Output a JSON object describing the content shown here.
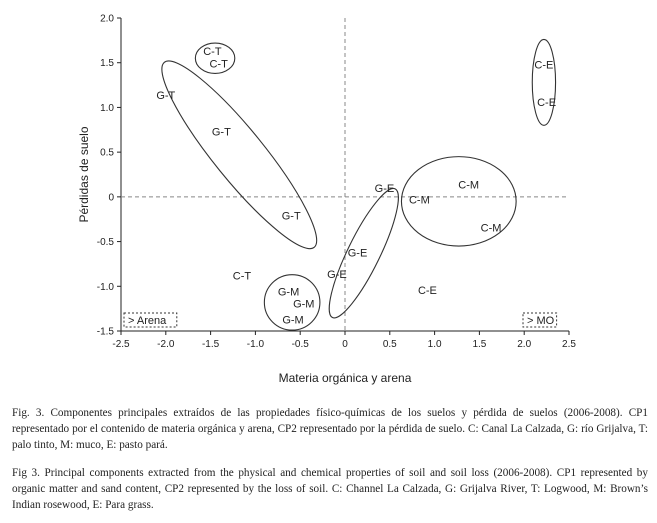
{
  "chart_data": {
    "type": "scatter",
    "xlabel": "Materia orgánica y arena",
    "ylabel": "Pérdidas de suelo",
    "xlim": [
      -2.5,
      2.5
    ],
    "ylim": [
      -1.5,
      2.0
    ],
    "xticks": [
      "-2.5",
      "-2.0",
      "-1.5",
      "-1.0",
      "-0.5",
      "0",
      "0.5",
      "1.0",
      "1.5",
      "2.0",
      "2.5"
    ],
    "yticks": [
      "2.0",
      "1.5",
      "1.0",
      "0.5",
      "0",
      "-0.5",
      "-1.0",
      "-1.5"
    ],
    "reference_lines": {
      "x": 0,
      "y": 0,
      "style": "dashed"
    },
    "corner_labels": {
      "left": "> Arena",
      "right": "> MO"
    },
    "points": [
      {
        "label": "C-T",
        "x": -1.48,
        "y": 1.63
      },
      {
        "label": "C-T",
        "x": -1.41,
        "y": 1.49
      },
      {
        "label": "G-T",
        "x": -2.0,
        "y": 1.14
      },
      {
        "label": "G-T",
        "x": -1.38,
        "y": 0.73
      },
      {
        "label": "G-T",
        "x": -0.6,
        "y": -0.21
      },
      {
        "label": "C-T",
        "x": -1.15,
        "y": -0.88
      },
      {
        "label": "G-M",
        "x": -0.63,
        "y": -1.06
      },
      {
        "label": "G-M",
        "x": -0.46,
        "y": -1.19
      },
      {
        "label": "G-M",
        "x": -0.58,
        "y": -1.37
      },
      {
        "label": "G-E",
        "x": 0.44,
        "y": 0.1
      },
      {
        "label": "G-E",
        "x": 0.14,
        "y": -0.62
      },
      {
        "label": "G-E",
        "x": -0.09,
        "y": -0.86
      },
      {
        "label": "C-M",
        "x": 0.83,
        "y": -0.03
      },
      {
        "label": "C-M",
        "x": 1.38,
        "y": 0.14
      },
      {
        "label": "C-M",
        "x": 1.63,
        "y": -0.34
      },
      {
        "label": "C-E",
        "x": 0.92,
        "y": -1.04
      },
      {
        "label": "C-E",
        "x": 2.22,
        "y": 1.48
      },
      {
        "label": "C-E",
        "x": 2.25,
        "y": 1.06
      }
    ],
    "groups": [
      {
        "name": "C-T",
        "cx": -1.45,
        "cy": 1.55,
        "rx": 0.22,
        "ry": 0.17,
        "angle": 0
      },
      {
        "name": "G-T",
        "cx": -1.18,
        "cy": 0.47,
        "rx": 1.33,
        "ry": 0.28,
        "angle": 51
      },
      {
        "name": "G-M",
        "cx": -0.59,
        "cy": -1.18,
        "rx": 0.31,
        "ry": 0.31,
        "angle": 0
      },
      {
        "name": "G-E",
        "cx": 0.21,
        "cy": -0.63,
        "rx": 0.8,
        "ry": 0.18,
        "angle": -64
      },
      {
        "name": "C-M",
        "cx": 1.27,
        "cy": -0.05,
        "rx": 0.64,
        "ry": 0.5,
        "angle": 0
      },
      {
        "name": "C-E",
        "cx": 2.22,
        "cy": 1.28,
        "rx": 0.13,
        "ry": 0.48,
        "angle": 0
      }
    ]
  },
  "captions": {
    "spanish": "Fig. 3. Componentes principales extraídos de las propiedades físico-químicas de los suelos y pérdida de suelos (2006-2008). CP1 representado por el contenido de materia orgánica y arena, CP2 representado por la pérdida de suelo. C: Canal La Calzada, G: río Grijalva, T: palo tinto, M: muco, E: pasto pará.",
    "english": "Fig 3. Principal components extracted from the physical and chemical properties of soil and soil loss (2006-2008). CP1 represented by organic matter and sand content, CP2 represented by the loss of soil. C: Channel La Calzada, G: Grijalva River, T: Logwood, M: Brown’s Indian rosewood, E: Para grass."
  }
}
